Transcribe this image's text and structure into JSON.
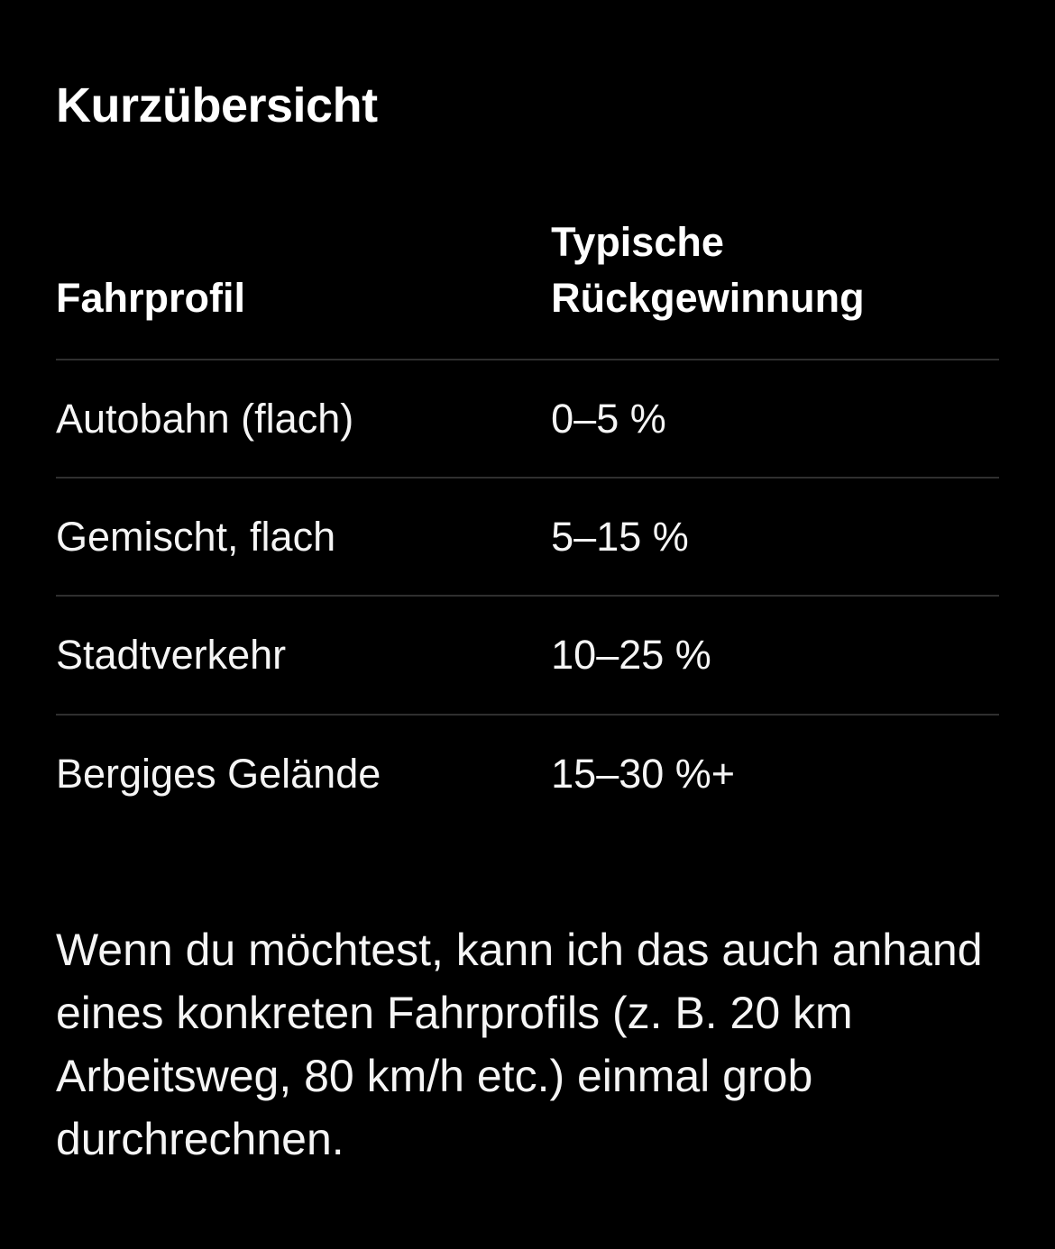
{
  "theme": {
    "background": "#000000",
    "text": "#f5f5f5",
    "heading_text": "#ffffff",
    "divider": "#2f2f2f"
  },
  "message": {
    "section_title": "Kurzübersicht",
    "table": {
      "columns": [
        {
          "label": "Fahrprofil"
        },
        {
          "label": "Typische Rückgewinnung"
        }
      ],
      "rows": [
        {
          "profile": "Autobahn (flach)",
          "recovery": "0–5 %"
        },
        {
          "profile": "Gemischt, flach",
          "recovery": "5–15 %"
        },
        {
          "profile": "Stadtverkehr",
          "recovery": "10–25 %"
        },
        {
          "profile": "Bergiges Gelände",
          "recovery": "15–30 %+"
        }
      ]
    },
    "paragraph": "Wenn du möchtest, kann ich das auch anhand eines konkreten Fahrprofils (z. B. 20 km Arbeitsweg, 80 km/h etc.) einmal grob durchrechnen."
  }
}
